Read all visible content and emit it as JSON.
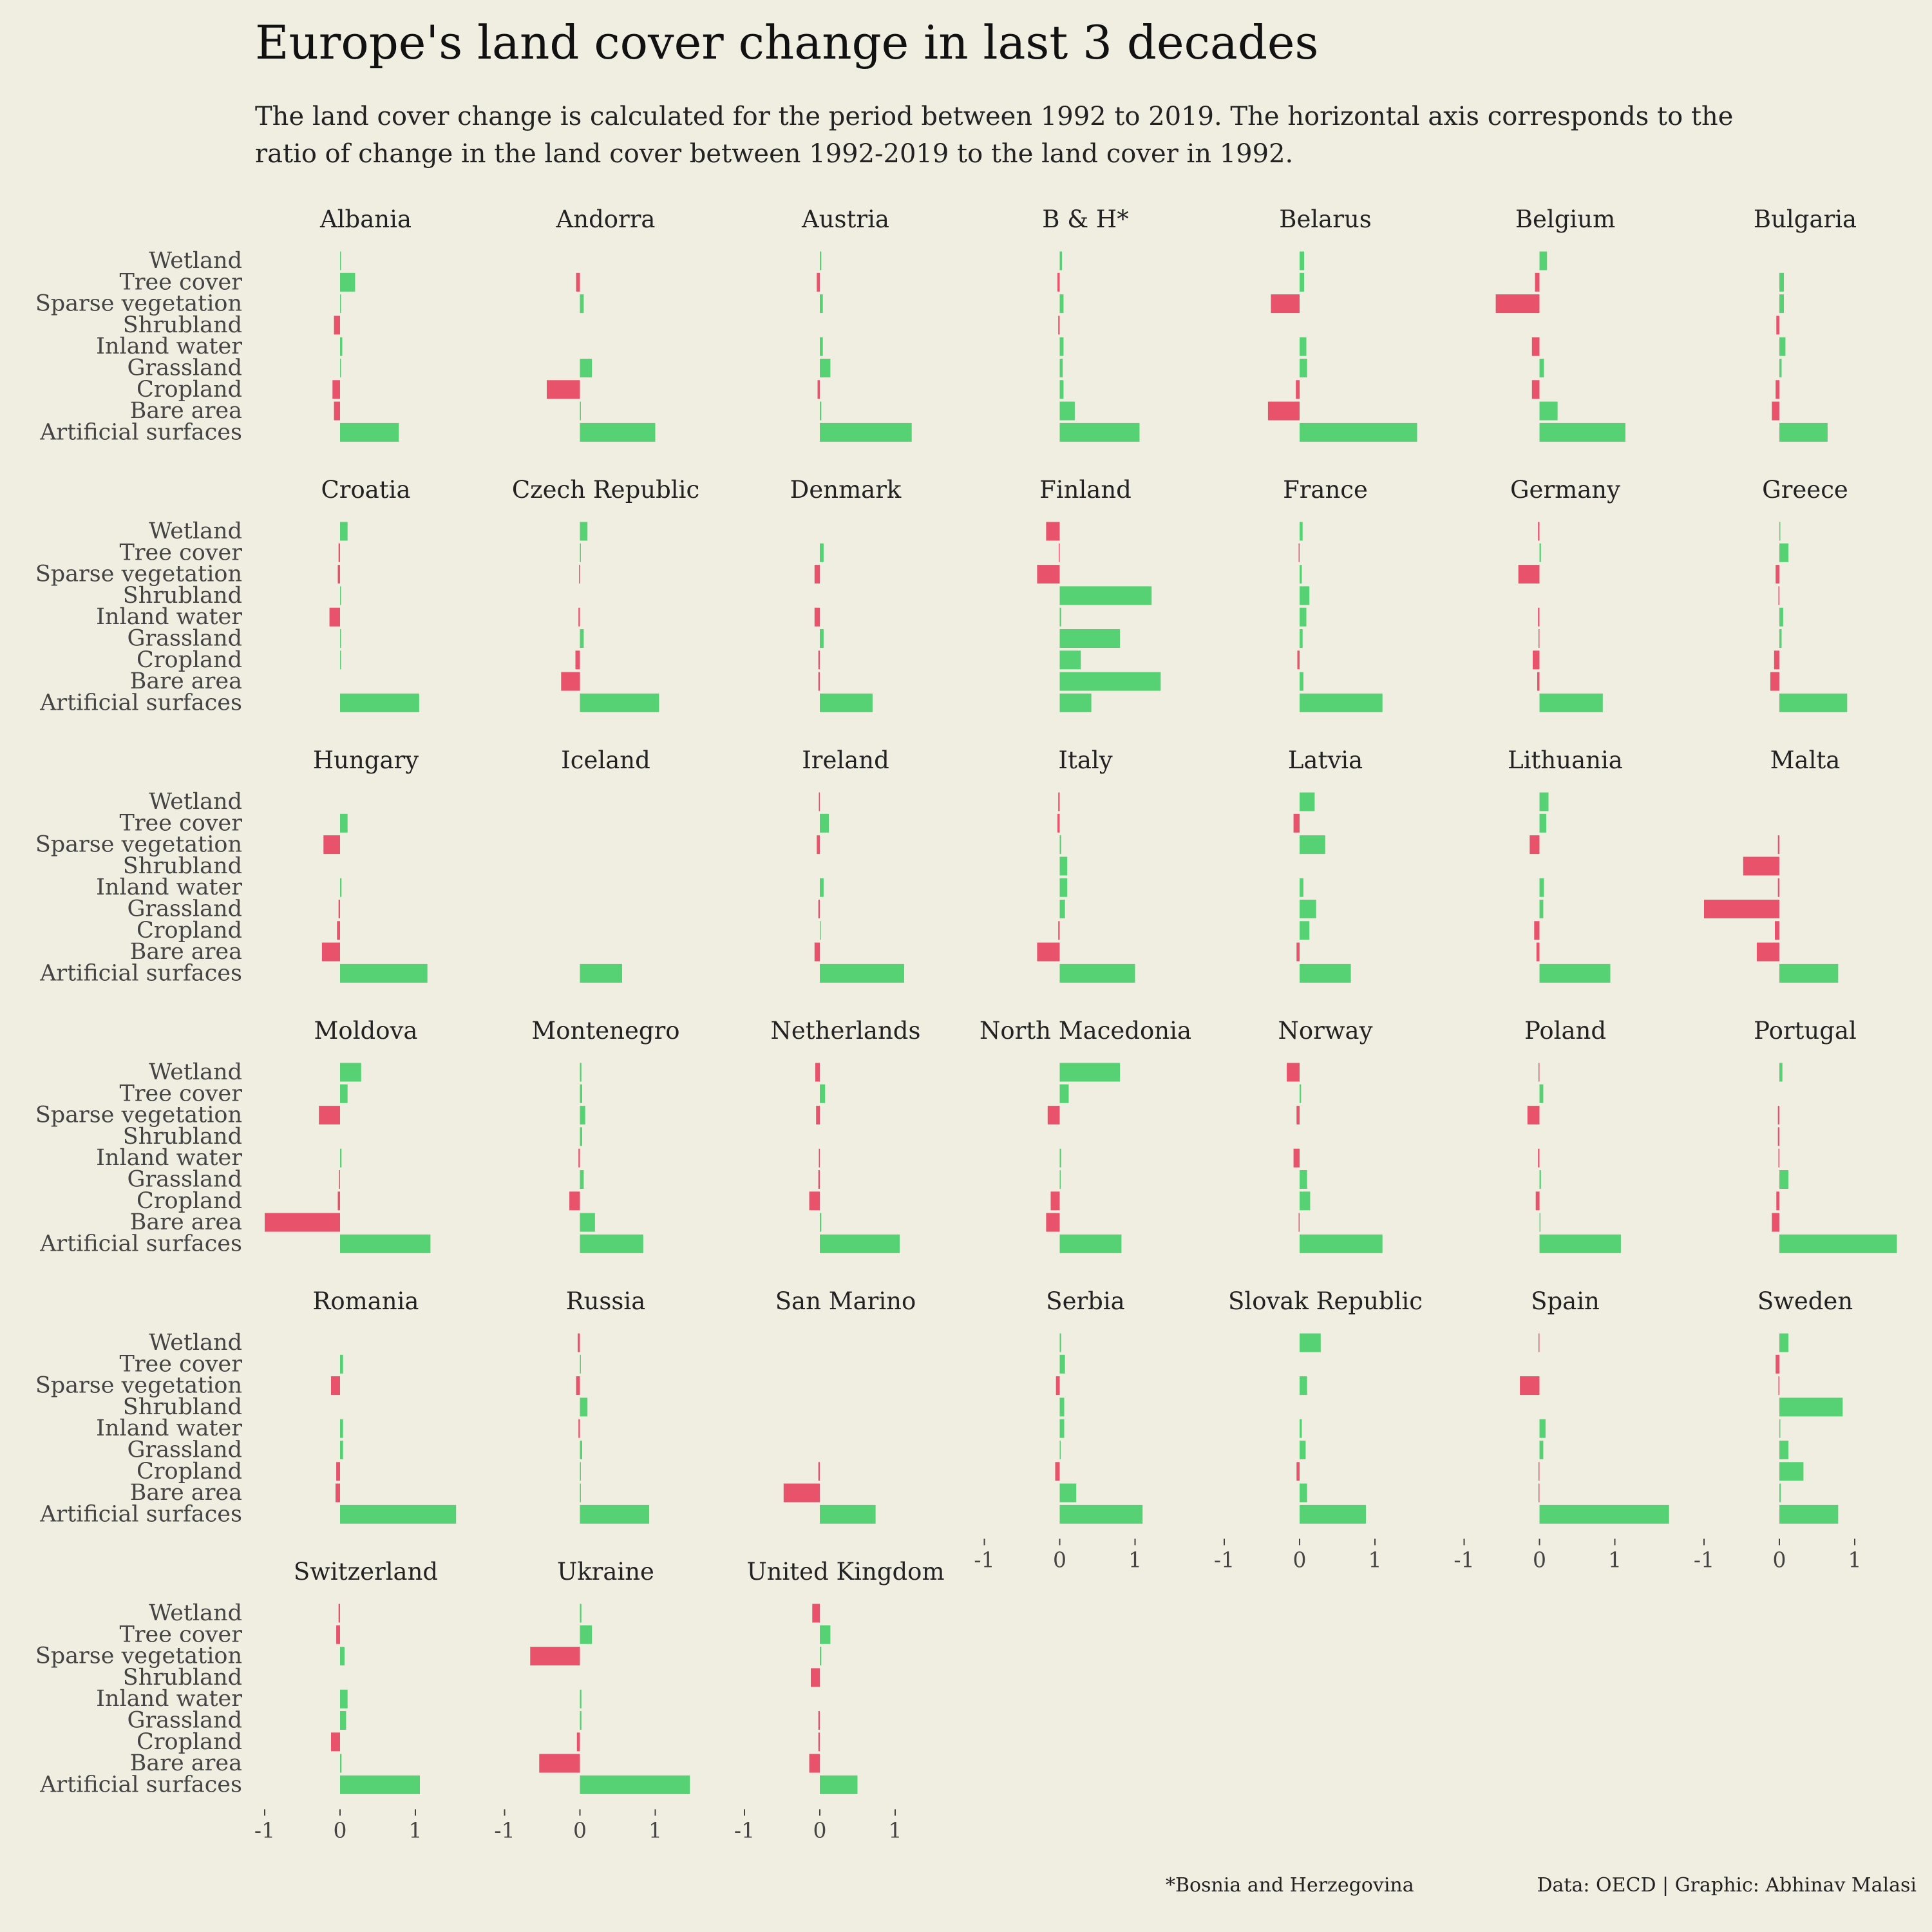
{
  "title": "Europe's land cover change in last 3 decades",
  "subtitle": "The land cover change is calculated for the period between 1992 to 2019. The horizontal axis corresponds to the ratio of change in the land cover between 1992-2019 to the land cover in 1992.",
  "footnote": "*Bosnia and Herzegovina",
  "credit": "Data: OECD | Graphic: Abhinav Malasi",
  "colors": {
    "positive": "#56d173",
    "negative": "#e8526a",
    "background": "#f0eee0"
  },
  "chart_data": {
    "type": "bar",
    "orientation": "horizontal",
    "layout": "small-multiples",
    "categories": [
      "Wetland",
      "Tree cover",
      "Sparse vegetation",
      "Shrubland",
      "Inland water",
      "Grassland",
      "Cropland",
      "Bare area",
      "Artificial surfaces"
    ],
    "xlim": [
      -1,
      1.6
    ],
    "xticks": [
      -1,
      0,
      1
    ],
    "grid": false,
    "panels": [
      {
        "name": "Albania",
        "values": [
          0,
          0.2,
          0.01,
          -0.08,
          0.03,
          0.01,
          -0.1,
          -0.08,
          0.78
        ]
      },
      {
        "name": "Andorra",
        "values": [
          null,
          -0.05,
          0.05,
          null,
          null,
          0.16,
          -0.44,
          0.01,
          1.0
        ]
      },
      {
        "name": "Austria",
        "values": [
          0.02,
          -0.04,
          0.04,
          null,
          0.04,
          0.14,
          -0.03,
          0.02,
          1.22
        ]
      },
      {
        "name": "B & H*",
        "values": [
          0.03,
          -0.03,
          0.05,
          -0.02,
          0.05,
          0.04,
          0.05,
          0.2,
          1.06
        ]
      },
      {
        "name": "Belarus",
        "values": [
          0.06,
          0.06,
          -0.38,
          null,
          0.09,
          0.1,
          -0.05,
          -0.42,
          1.56
        ]
      },
      {
        "name": "Belgium",
        "values": [
          0.1,
          -0.06,
          -0.58,
          null,
          -0.1,
          0.06,
          -0.1,
          0.24,
          1.14
        ]
      },
      {
        "name": "Bulgaria",
        "values": [
          null,
          0.06,
          0.06,
          -0.04,
          0.08,
          0.03,
          -0.05,
          -0.1,
          0.64
        ]
      },
      {
        "name": "Croatia",
        "values": [
          0.1,
          -0.02,
          -0.03,
          0.01,
          -0.14,
          0.01,
          0.01,
          null,
          1.05
        ]
      },
      {
        "name": "Czech Republic",
        "values": [
          0.1,
          0.01,
          -0.01,
          null,
          -0.02,
          0.05,
          -0.06,
          -0.25,
          1.05
        ]
      },
      {
        "name": "Denmark",
        "values": [
          null,
          0.05,
          -0.07,
          null,
          -0.07,
          0.05,
          -0.02,
          -0.02,
          0.7
        ]
      },
      {
        "name": "Finland",
        "values": [
          -0.18,
          -0.01,
          -0.3,
          1.22,
          0.02,
          0.8,
          0.28,
          1.34,
          0.42
        ]
      },
      {
        "name": "France",
        "values": [
          0.04,
          -0.01,
          0.03,
          0.13,
          0.09,
          0.04,
          -0.03,
          0.05,
          1.1
        ]
      },
      {
        "name": "Germany",
        "values": [
          -0.02,
          0.02,
          -0.28,
          null,
          -0.02,
          -0.01,
          -0.09,
          -0.03,
          0.84
        ]
      },
      {
        "name": "Greece",
        "values": [
          0.01,
          0.12,
          -0.05,
          -0.01,
          0.05,
          0.03,
          -0.07,
          -0.12,
          0.9
        ]
      },
      {
        "name": "Hungary",
        "values": [
          null,
          0.1,
          -0.22,
          null,
          0.02,
          -0.02,
          -0.04,
          -0.24,
          1.16
        ]
      },
      {
        "name": "Iceland",
        "values": [
          null,
          null,
          null,
          null,
          null,
          null,
          null,
          null,
          0.56
        ]
      },
      {
        "name": "Ireland",
        "values": [
          -0.01,
          0.12,
          -0.04,
          null,
          0.05,
          -0.02,
          0.01,
          -0.07,
          1.12
        ]
      },
      {
        "name": "Italy",
        "values": [
          -0.02,
          -0.03,
          0.02,
          0.1,
          0.1,
          0.07,
          -0.02,
          -0.3,
          1.0
        ]
      },
      {
        "name": "Latvia",
        "values": [
          0.2,
          -0.08,
          0.34,
          null,
          0.05,
          0.22,
          0.13,
          -0.04,
          0.68
        ]
      },
      {
        "name": "Lithuania",
        "values": [
          0.12,
          0.09,
          -0.13,
          null,
          0.06,
          0.05,
          -0.07,
          -0.04,
          0.94
        ]
      },
      {
        "name": "Malta",
        "values": [
          null,
          null,
          -0.02,
          -0.48,
          -0.02,
          -1.0,
          -0.06,
          -0.3,
          0.78
        ]
      },
      {
        "name": "Moldova",
        "values": [
          0.28,
          0.1,
          -0.28,
          null,
          0.02,
          -0.01,
          -0.03,
          -1.0,
          1.2
        ]
      },
      {
        "name": "Montenegro",
        "values": [
          0.02,
          0.03,
          0.07,
          0.03,
          -0.02,
          0.05,
          -0.14,
          0.2,
          0.84
        ]
      },
      {
        "name": "Netherlands",
        "values": [
          -0.06,
          0.07,
          -0.05,
          null,
          -0.01,
          -0.02,
          -0.14,
          0.02,
          1.06
        ]
      },
      {
        "name": "North Macedonia",
        "values": [
          0.8,
          0.12,
          -0.16,
          null,
          0.02,
          0.01,
          -0.12,
          -0.18,
          0.82
        ]
      },
      {
        "name": "Norway",
        "values": [
          -0.17,
          0.02,
          -0.04,
          null,
          -0.08,
          0.1,
          0.14,
          -0.01,
          1.1
        ]
      },
      {
        "name": "Poland",
        "values": [
          -0.01,
          0.05,
          -0.16,
          null,
          -0.02,
          0.02,
          -0.05,
          0.01,
          1.08
        ]
      },
      {
        "name": "Portugal",
        "values": [
          0.04,
          null,
          -0.02,
          -0.02,
          -0.01,
          0.12,
          -0.04,
          -0.1,
          1.56
        ]
      },
      {
        "name": "Romania",
        "values": [
          null,
          0.04,
          -0.12,
          null,
          0.04,
          0.04,
          -0.05,
          -0.06,
          1.54
        ]
      },
      {
        "name": "Russia",
        "values": [
          -0.03,
          0.01,
          -0.05,
          0.1,
          -0.02,
          0.03,
          0.01,
          0.01,
          0.92
        ]
      },
      {
        "name": "San Marino",
        "values": [
          null,
          null,
          null,
          null,
          null,
          null,
          -0.02,
          -0.48,
          0.74
        ]
      },
      {
        "name": "Serbia",
        "values": [
          0.02,
          0.07,
          -0.05,
          0.06,
          0.06,
          0.01,
          -0.06,
          0.22,
          1.1
        ]
      },
      {
        "name": "Slovak Republic",
        "values": [
          0.28,
          null,
          0.1,
          null,
          0.03,
          0.08,
          -0.04,
          0.1,
          0.88
        ]
      },
      {
        "name": "Spain",
        "values": [
          -0.01,
          null,
          -0.26,
          null,
          0.08,
          0.05,
          -0.01,
          -0.01,
          1.72
        ]
      },
      {
        "name": "Sweden",
        "values": [
          0.12,
          -0.05,
          -0.01,
          0.84,
          0.01,
          0.12,
          0.32,
          0.02,
          0.78
        ]
      },
      {
        "name": "Switzerland",
        "values": [
          -0.02,
          -0.05,
          0.06,
          null,
          0.1,
          0.08,
          -0.12,
          0.02,
          1.06
        ]
      },
      {
        "name": "Ukraine",
        "values": [
          0.02,
          0.16,
          -0.66,
          null,
          0.02,
          0.02,
          -0.04,
          -0.54,
          1.46
        ]
      },
      {
        "name": "United Kingdom",
        "values": [
          -0.1,
          0.14,
          0.02,
          -0.12,
          null,
          -0.02,
          -0.02,
          -0.14,
          0.5
        ]
      }
    ]
  }
}
